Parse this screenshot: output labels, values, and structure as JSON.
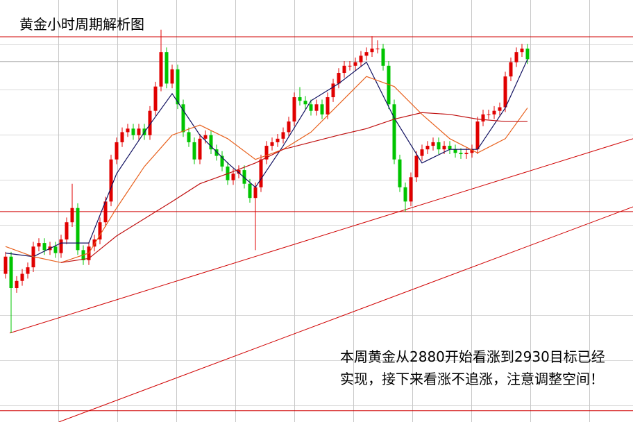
{
  "chart_data": {
    "type": "candlestick",
    "title": "黄金小时周期解析图",
    "annotation": [
      "本周黄金从2880开始看涨到2930目标已经",
      "实现，接下来看涨不追涨，注意调整空间！"
    ],
    "xlim": [
      -1,
      113
    ],
    "ylim": [
      2865.0,
      2936.2
    ],
    "up_color": "#e00000",
    "down_color": "#00c400",
    "open": [
      2890.0,
      2892.9,
      2887.6,
      2888.8,
      2890.0,
      2891.1,
      2894.6,
      2895.2,
      2894.0,
      2894.6,
      2893.5,
      2895.8,
      2898.7,
      2901.1,
      2894.0,
      2892.3,
      2894.6,
      2895.8,
      2898.7,
      2902.2,
      2909.3,
      2912.2,
      2913.9,
      2914.5,
      2913.4,
      2914.5,
      2913.4,
      2917.5,
      2921.6,
      2927.4,
      2922.1,
      2924.5,
      2918.6,
      2913.9,
      2912.2,
      2909.3,
      2912.8,
      2913.4,
      2911.0,
      2909.9,
      2908.1,
      2905.8,
      2906.9,
      2907.5,
      2905.2,
      2902.8,
      2904.6,
      2909.3,
      2911.6,
      2912.2,
      2912.8,
      2913.9,
      2915.7,
      2919.8,
      2919.2,
      2918.6,
      2917.5,
      2918.6,
      2916.9,
      2919.8,
      2922.1,
      2923.9,
      2925.1,
      2925.1,
      2925.7,
      2926.8,
      2927.4,
      2928.0,
      2928.0,
      2925.1,
      2918.6,
      2909.3,
      2904.6,
      2902.2,
      2906.3,
      2909.9,
      2911.0,
      2911.6,
      2912.2,
      2911.0,
      2911.6,
      2911.0,
      2910.4,
      2910.2,
      2910.4,
      2911.0,
      2915.7,
      2916.9,
      2916.9,
      2917.5,
      2918.1,
      2923.3,
      2925.7,
      2927.4,
      2928.0
    ],
    "high": [
      2893.7,
      2893.7,
      2889.6,
      2890.8,
      2891.9,
      2895.4,
      2896.0,
      2896.0,
      2895.4,
      2895.4,
      2896.6,
      2899.5,
      2905.2,
      2901.9,
      2894.8,
      2895.4,
      2896.6,
      2899.5,
      2903.0,
      2910.1,
      2913.0,
      2914.7,
      2915.3,
      2915.3,
      2915.3,
      2915.3,
      2918.3,
      2922.4,
      2931.2,
      2928.2,
      2925.3,
      2925.3,
      2919.4,
      2914.7,
      2913.0,
      2913.6,
      2914.2,
      2914.2,
      2911.8,
      2910.7,
      2908.9,
      2907.7,
      2908.3,
      2908.3,
      2906.0,
      2905.4,
      2910.1,
      2912.4,
      2913.0,
      2913.6,
      2914.7,
      2916.5,
      2920.6,
      2921.5,
      2920.0,
      2919.4,
      2919.4,
      2919.4,
      2920.6,
      2922.9,
      2924.7,
      2925.9,
      2925.9,
      2926.5,
      2927.6,
      2928.2,
      2930.1,
      2929.4,
      2928.8,
      2925.9,
      2919.4,
      2910.1,
      2905.4,
      2907.1,
      2910.7,
      2911.8,
      2912.4,
      2913.0,
      2913.0,
      2912.4,
      2912.4,
      2911.8,
      2911.2,
      2911.2,
      2911.8,
      2916.5,
      2917.7,
      2917.7,
      2918.3,
      2918.9,
      2924.1,
      2926.5,
      2928.2,
      2928.8,
      2928.8
    ],
    "low": [
      2889.2,
      2880.0,
      2886.8,
      2888.0,
      2889.2,
      2890.3,
      2893.8,
      2893.2,
      2893.2,
      2892.7,
      2892.7,
      2895.0,
      2897.9,
      2893.2,
      2891.5,
      2891.5,
      2893.8,
      2895.0,
      2897.9,
      2901.4,
      2908.5,
      2911.4,
      2913.1,
      2912.6,
      2912.6,
      2912.6,
      2912.6,
      2916.7,
      2920.8,
      2921.3,
      2921.3,
      2917.8,
      2913.1,
      2911.4,
      2908.5,
      2908.5,
      2912.0,
      2910.2,
      2909.1,
      2907.3,
      2905.0,
      2905.0,
      2906.1,
      2904.4,
      2902.0,
      2894.0,
      2903.8,
      2908.5,
      2910.8,
      2911.4,
      2912.0,
      2913.1,
      2914.9,
      2918.4,
      2917.8,
      2916.7,
      2916.7,
      2916.1,
      2916.1,
      2919.0,
      2921.3,
      2923.1,
      2924.3,
      2924.3,
      2924.9,
      2926.0,
      2926.6,
      2927.2,
      2924.3,
      2917.8,
      2908.5,
      2903.8,
      2900.5,
      2901.4,
      2905.5,
      2909.1,
      2910.2,
      2910.8,
      2910.2,
      2910.2,
      2910.2,
      2909.6,
      2909.4,
      2909.4,
      2909.6,
      2910.2,
      2914.9,
      2916.1,
      2916.1,
      2916.7,
      2917.3,
      2922.5,
      2924.9,
      2926.6,
      2925.4
    ],
    "close": [
      2892.9,
      2887.6,
      2888.8,
      2890.0,
      2891.1,
      2894.6,
      2895.2,
      2894.0,
      2894.6,
      2893.5,
      2895.8,
      2898.7,
      2901.1,
      2894.0,
      2892.3,
      2894.6,
      2895.8,
      2898.7,
      2902.2,
      2909.3,
      2912.2,
      2913.9,
      2914.5,
      2913.4,
      2914.5,
      2913.4,
      2917.5,
      2921.6,
      2927.4,
      2922.1,
      2924.5,
      2918.6,
      2913.9,
      2912.2,
      2909.3,
      2912.8,
      2913.4,
      2911.0,
      2909.9,
      2908.1,
      2905.8,
      2906.9,
      2907.5,
      2905.2,
      2902.8,
      2904.6,
      2909.3,
      2911.6,
      2912.2,
      2912.8,
      2913.9,
      2915.7,
      2919.8,
      2919.2,
      2918.6,
      2917.5,
      2918.6,
      2916.9,
      2919.8,
      2922.1,
      2923.9,
      2925.1,
      2925.1,
      2925.7,
      2926.8,
      2927.4,
      2928.0,
      2928.0,
      2925.1,
      2918.6,
      2909.3,
      2904.6,
      2902.2,
      2906.3,
      2909.9,
      2911.0,
      2911.6,
      2912.2,
      2911.0,
      2911.6,
      2911.0,
      2910.4,
      2910.2,
      2910.4,
      2911.0,
      2915.7,
      2916.9,
      2916.9,
      2917.5,
      2918.1,
      2923.3,
      2925.7,
      2927.4,
      2928.0,
      2926.2
    ],
    "lines": [
      {
        "color": "#101060",
        "x": [
          0,
          5,
          10,
          15,
          20,
          25,
          30,
          35,
          40,
          45,
          50,
          55,
          60,
          65,
          70,
          75,
          80,
          85,
          90,
          94
        ],
        "values": [
          2893.5,
          2892.9,
          2895.2,
          2895.2,
          2906.9,
          2913.9,
          2920.4,
          2913.4,
          2908.7,
          2904.6,
          2911.6,
          2919.2,
          2922.1,
          2925.7,
          2916.3,
          2908.7,
          2911.0,
          2911.0,
          2918.0,
          2926.2
        ]
      },
      {
        "color": "#e8601c",
        "x": [
          0,
          5,
          10,
          15,
          20,
          25,
          30,
          35,
          40,
          45,
          50,
          55,
          60,
          65,
          70,
          75,
          80,
          85,
          90,
          94
        ],
        "values": [
          2894.6,
          2892.9,
          2891.9,
          2893.5,
          2901.1,
          2908.1,
          2913.4,
          2915.1,
          2912.8,
          2909.3,
          2911.0,
          2913.9,
          2918.6,
          2923.3,
          2921.6,
          2916.9,
          2912.8,
          2910.4,
          2912.8,
          2918.0
        ]
      },
      {
        "color": "#c01010",
        "x": [
          0,
          5,
          10,
          15,
          20,
          25,
          30,
          35,
          40,
          45,
          50,
          55,
          60,
          65,
          70,
          75,
          80,
          85,
          90,
          94
        ],
        "values": [
          null,
          null,
          2891.9,
          2892.6,
          2896.4,
          2899.3,
          2902.2,
          2905.2,
          2906.9,
          2908.7,
          2911.0,
          2912.2,
          2913.4,
          2914.5,
          2916.1,
          2917.2,
          2916.9,
          2916.1,
          2915.7,
          2915.7
        ]
      }
    ],
    "levels": [
      {
        "value": 2930.0,
        "color": "#d00000"
      },
      {
        "value": 2925.8,
        "color": "#b0b0b0"
      },
      {
        "value": 2900.5,
        "color": "#d00000"
      },
      {
        "value": 2866.9,
        "color": "#d00000"
      }
    ],
    "trendlines": [
      {
        "x": [
          0.75,
          113
        ],
        "values": [
          2880.0,
          2912.8
        ],
        "color": "#d00000"
      },
      {
        "x": [
          9.6,
          113
        ],
        "values": [
          2865.0,
          2901.3
        ],
        "color": "#d00000"
      }
    ]
  }
}
